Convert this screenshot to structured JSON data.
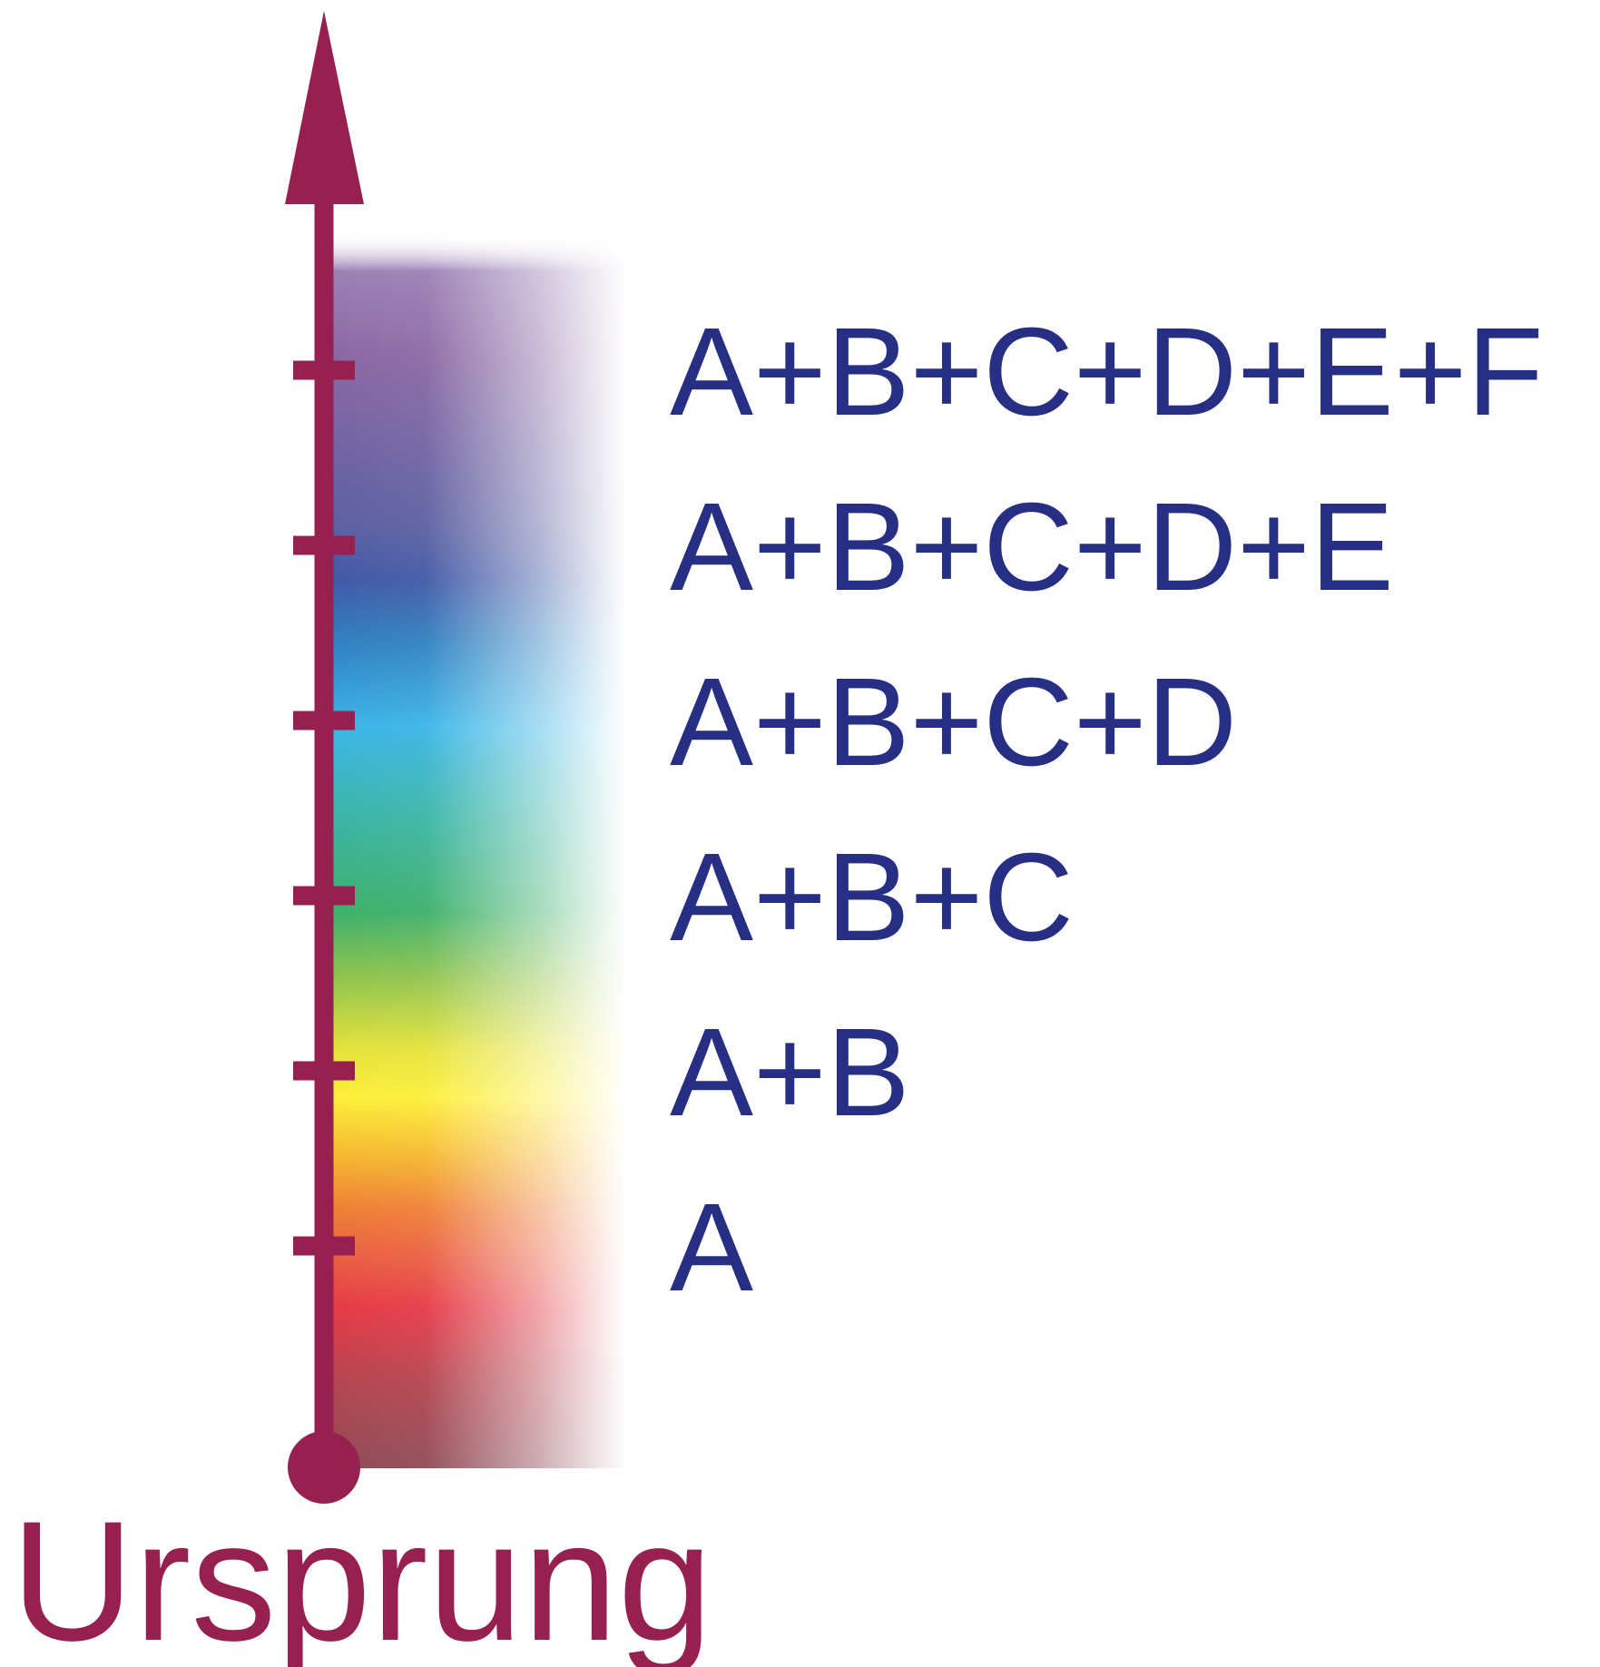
{
  "axis": {
    "color": "#962050",
    "origin_label": "Ursprung"
  },
  "label_color": "#262f84",
  "levels": [
    {
      "label": "A",
      "color": "#e73945"
    },
    {
      "label": "A+B",
      "color": "#f08a30"
    },
    {
      "label": "A+B+C",
      "color": "#3db069"
    },
    {
      "label": "A+B+C+D",
      "color": "#3ab5e8"
    },
    {
      "label": "A+B+C+D+E",
      "color": "#3f5ba6"
    },
    {
      "label": "A+B+C+D+E+F",
      "color": "#8a67a3"
    }
  ],
  "spectrum_stops": [
    {
      "offset": 0.0,
      "color": "#ffffff",
      "opacity": 0
    },
    {
      "offset": 0.03,
      "color": "#9b80b4",
      "opacity": 1
    },
    {
      "offset": 0.1,
      "color": "#8a67a3",
      "opacity": 1
    },
    {
      "offset": 0.24,
      "color": "#5a5fa2",
      "opacity": 1
    },
    {
      "offset": 0.28,
      "color": "#4058a6",
      "opacity": 1
    },
    {
      "offset": 0.33,
      "color": "#2f80c0",
      "opacity": 1
    },
    {
      "offset": 0.4,
      "color": "#3ab5e8",
      "opacity": 1
    },
    {
      "offset": 0.46,
      "color": "#39b5b0",
      "opacity": 1
    },
    {
      "offset": 0.55,
      "color": "#3db069",
      "opacity": 1
    },
    {
      "offset": 0.6,
      "color": "#8cc24d",
      "opacity": 1
    },
    {
      "offset": 0.66,
      "color": "#e4e23a",
      "opacity": 1
    },
    {
      "offset": 0.7,
      "color": "#fdef38",
      "opacity": 1
    },
    {
      "offset": 0.75,
      "color": "#f5b32e",
      "opacity": 1
    },
    {
      "offset": 0.79,
      "color": "#ef7e35",
      "opacity": 1
    },
    {
      "offset": 0.83,
      "color": "#ea5d41",
      "opacity": 1
    },
    {
      "offset": 0.87,
      "color": "#e63946",
      "opacity": 1
    },
    {
      "offset": 0.93,
      "color": "#b4444f",
      "opacity": 1
    },
    {
      "offset": 1.0,
      "color": "#8e4a56",
      "opacity": 1
    }
  ]
}
